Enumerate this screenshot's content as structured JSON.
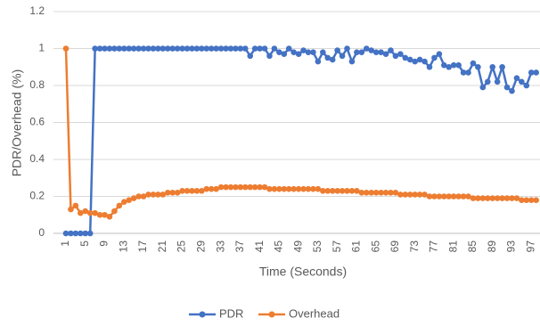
{
  "chart_data": {
    "type": "line",
    "x_label": "Time (Seconds)",
    "y_label": "PDR/Overhead (%)",
    "categories": [
      1,
      null,
      null,
      null,
      5,
      null,
      null,
      null,
      9,
      null,
      null,
      null,
      13,
      null,
      null,
      null,
      17,
      null,
      null,
      null,
      21,
      null,
      null,
      null,
      25,
      null,
      null,
      null,
      29,
      null,
      null,
      null,
      33,
      null,
      null,
      null,
      37,
      null,
      null,
      null,
      41,
      null,
      null,
      null,
      45,
      null,
      null,
      null,
      49,
      null,
      null,
      null,
      53,
      null,
      null,
      null,
      57,
      null,
      null,
      null,
      61,
      null,
      null,
      null,
      65,
      null,
      null,
      null,
      69,
      null,
      null,
      null,
      73,
      null,
      null,
      null,
      77,
      null,
      null,
      null,
      81,
      null,
      null,
      null,
      85,
      null,
      null,
      null,
      89,
      null,
      null,
      null,
      93,
      null,
      null,
      null,
      97,
      null
    ],
    "series": [
      {
        "name": "PDR",
        "color": "#4472c4",
        "values": [
          0,
          0,
          0,
          0,
          0,
          0,
          1,
          1,
          1,
          1,
          1,
          1,
          1,
          1,
          1,
          1,
          1,
          1,
          1,
          1,
          1,
          1,
          1,
          1,
          1,
          1,
          1,
          1,
          1,
          1,
          1,
          1,
          1,
          1,
          1,
          1,
          1,
          1,
          0.96,
          1,
          1,
          1,
          0.96,
          1,
          0.98,
          0.97,
          1,
          0.98,
          0.97,
          0.99,
          0.98,
          0.98,
          0.93,
          0.98,
          0.95,
          0.94,
          0.99,
          0.96,
          1,
          0.93,
          0.98,
          0.98,
          1,
          0.99,
          0.98,
          0.98,
          0.97,
          0.99,
          0.96,
          0.97,
          0.95,
          0.94,
          0.93,
          0.94,
          0.93,
          0.9,
          0.95,
          0.97,
          0.91,
          0.9,
          0.91,
          0.91,
          0.87,
          0.87,
          0.92,
          0.9,
          0.79,
          0.82,
          0.9,
          0.82,
          0.9,
          0.79,
          0.77,
          0.84,
          0.82,
          0.8,
          0.87,
          0.87
        ]
      },
      {
        "name": "Overhead",
        "color": "#ed7d31",
        "values": [
          1,
          0.13,
          0.15,
          0.11,
          0.12,
          0.11,
          0.11,
          0.1,
          0.1,
          0.09,
          0.12,
          0.15,
          0.17,
          0.18,
          0.19,
          0.2,
          0.2,
          0.21,
          0.21,
          0.21,
          0.21,
          0.22,
          0.22,
          0.22,
          0.23,
          0.23,
          0.23,
          0.23,
          0.23,
          0.24,
          0.24,
          0.24,
          0.25,
          0.25,
          0.25,
          0.25,
          0.25,
          0.25,
          0.25,
          0.25,
          0.25,
          0.25,
          0.24,
          0.24,
          0.24,
          0.24,
          0.24,
          0.24,
          0.24,
          0.24,
          0.24,
          0.24,
          0.24,
          0.23,
          0.23,
          0.23,
          0.23,
          0.23,
          0.23,
          0.23,
          0.23,
          0.22,
          0.22,
          0.22,
          0.22,
          0.22,
          0.22,
          0.22,
          0.22,
          0.21,
          0.21,
          0.21,
          0.21,
          0.21,
          0.21,
          0.2,
          0.2,
          0.2,
          0.2,
          0.2,
          0.2,
          0.2,
          0.2,
          0.2,
          0.19,
          0.19,
          0.19,
          0.19,
          0.19,
          0.19,
          0.19,
          0.19,
          0.19,
          0.19,
          0.18,
          0.18,
          0.18,
          0.18
        ]
      }
    ],
    "ylim": [
      0,
      1.2
    ],
    "yticks": [
      0,
      0.2,
      0.4,
      0.6,
      0.8,
      1,
      1.2
    ],
    "grid": true,
    "legend": "bottom"
  }
}
